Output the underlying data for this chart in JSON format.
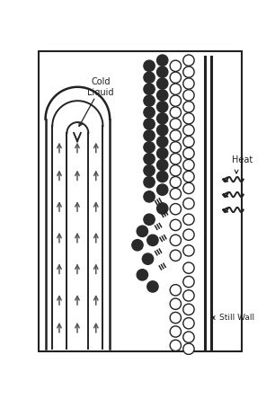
{
  "fig_width": 3.06,
  "fig_height": 4.44,
  "dpi": 100,
  "bg_color": "#ffffff",
  "border_color": "#222222",
  "heat_label": "Heat",
  "still_wall_label": "Still Wall",
  "cold_liquid_label": "Cold\nLiquid",
  "filled_color": "#2a2a2a",
  "open_color": "#ffffff",
  "open_edge": "#222222",
  "line_color": "#222222"
}
